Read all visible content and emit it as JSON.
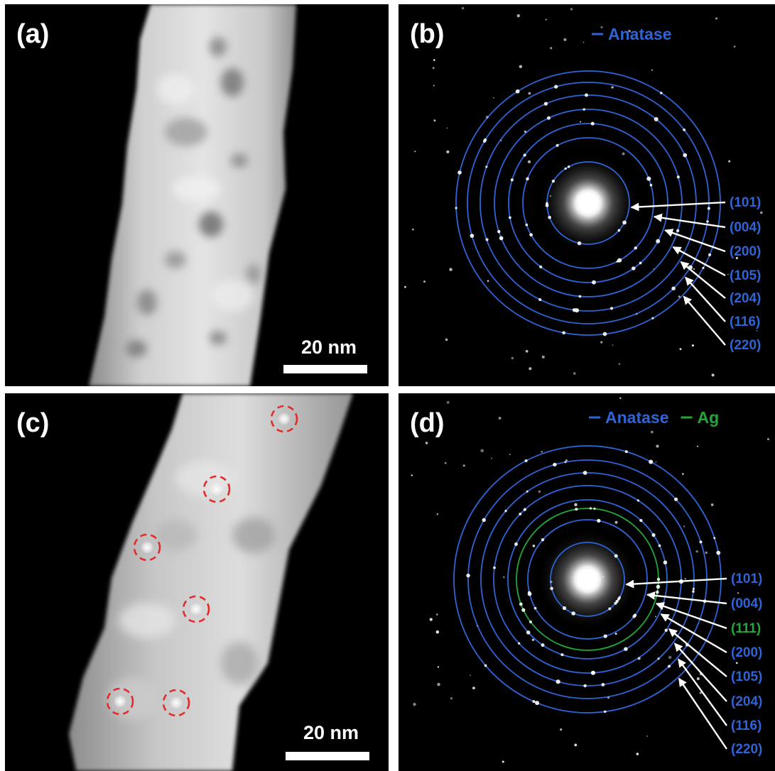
{
  "colors": {
    "anatase": "#2f64d6",
    "ag": "#22a83a",
    "arrow": "#ffffff",
    "marker": "#e32b2b"
  },
  "panel_a": {
    "label": "(a)",
    "scale_bar": "20 nm"
  },
  "panel_b": {
    "label": "(b)",
    "legend": [
      {
        "name": "Anatase",
        "color": "#2f64d6"
      }
    ],
    "rings": [
      {
        "hkl": "(101)",
        "phase": "anatase"
      },
      {
        "hkl": "(004)",
        "phase": "anatase"
      },
      {
        "hkl": "(200)",
        "phase": "anatase"
      },
      {
        "hkl": "(105)",
        "phase": "anatase"
      },
      {
        "hkl": "(204)",
        "phase": "anatase"
      },
      {
        "hkl": "(116)",
        "phase": "anatase"
      },
      {
        "hkl": "(220)",
        "phase": "anatase"
      }
    ]
  },
  "panel_c": {
    "label": "(c)",
    "scale_bar": "20 nm"
  },
  "panel_d": {
    "label": "(d)",
    "legend": [
      {
        "name": "Anatase",
        "color": "#2f64d6"
      },
      {
        "name": "Ag",
        "color": "#22a83a"
      }
    ],
    "rings": [
      {
        "hkl": "(101)",
        "phase": "anatase"
      },
      {
        "hkl": "(004)",
        "phase": "anatase"
      },
      {
        "hkl": "(111)",
        "phase": "ag"
      },
      {
        "hkl": "(200)",
        "phase": "anatase"
      },
      {
        "hkl": "(105)",
        "phase": "anatase"
      },
      {
        "hkl": "(204)",
        "phase": "anatase"
      },
      {
        "hkl": "(116)",
        "phase": "anatase"
      },
      {
        "hkl": "(220)",
        "phase": "anatase"
      }
    ]
  }
}
